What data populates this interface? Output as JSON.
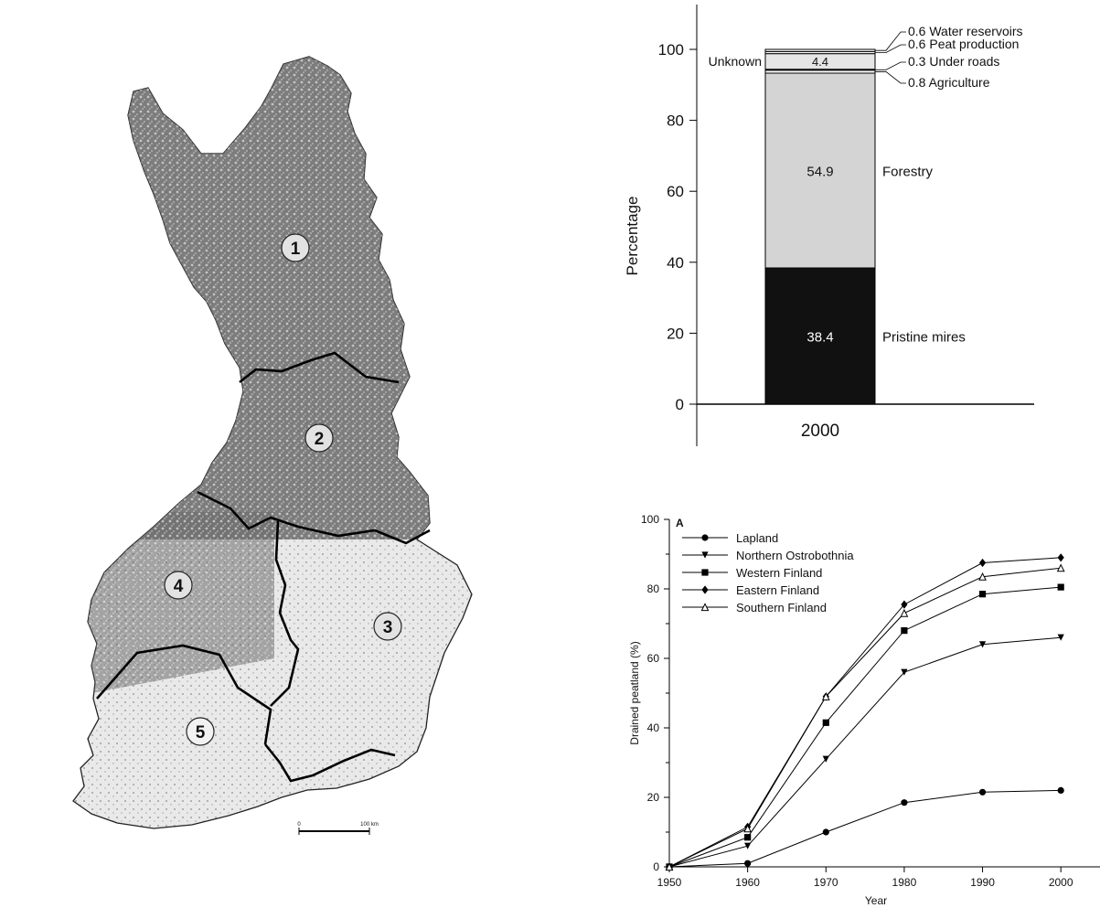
{
  "map": {
    "regions": [
      {
        "number": "1",
        "name": "Lapland"
      },
      {
        "number": "2",
        "name": "Northern Ostrobothnia"
      },
      {
        "number": "3",
        "name": "Eastern Finland"
      },
      {
        "number": "4",
        "name": "Western Finland"
      },
      {
        "number": "5",
        "name": "Southern Finland"
      }
    ],
    "scale_start": "0",
    "scale_end": "100 km",
    "colors": {
      "land": "#e8e8e8",
      "peat": "#555555",
      "boundary": "#000000"
    }
  },
  "chart_data": [
    {
      "type": "bar",
      "stacked": true,
      "categories": [
        "2000"
      ],
      "ylabel": "Percentage",
      "ylim": [
        0,
        100
      ],
      "yticks": [
        0,
        20,
        40,
        60,
        80,
        100
      ],
      "segments": [
        {
          "name": "Pristine mires",
          "value": 38.4,
          "label": "38.4",
          "color": "#111111"
        },
        {
          "name": "Forestry",
          "value": 54.9,
          "label": "54.9",
          "color": "#d4d4d4"
        },
        {
          "name": "Agriculture",
          "value": 0.8,
          "label": "0.8 Agriculture",
          "color": "#ffffff"
        },
        {
          "name": "Under roads",
          "value": 0.3,
          "label": "0.3 Under roads",
          "color": "#ffffff"
        },
        {
          "name": "Unknown",
          "value": 4.4,
          "label": "4.4",
          "color": "#e6e6e6"
        },
        {
          "name": "Peat production",
          "value": 0.6,
          "label": "0.6 Peat production",
          "color": "#ffffff"
        },
        {
          "name": "Water reservoirs",
          "value": 0.6,
          "label": "0.6 Water reservoirs",
          "color": "#ffffff"
        }
      ]
    },
    {
      "type": "line",
      "panel_label": "A",
      "xlabel": "Year",
      "ylabel": "Drained peatland (%)",
      "x": [
        1950,
        1960,
        1970,
        1980,
        1990,
        2000
      ],
      "xlim": [
        1950,
        2005
      ],
      "ylim": [
        0,
        100
      ],
      "xticks": [
        1950,
        1960,
        1970,
        1980,
        1990,
        2000
      ],
      "yticks": [
        0,
        20,
        40,
        60,
        80,
        100
      ],
      "legend_position": "top-left",
      "series": [
        {
          "name": "Lapland",
          "marker": "circle",
          "values": [
            0,
            1,
            10,
            18.5,
            21.5,
            22
          ]
        },
        {
          "name": "Northern Ostrobothnia",
          "marker": "triangle-down",
          "values": [
            0,
            6,
            31,
            56,
            64,
            66
          ]
        },
        {
          "name": "Western Finland",
          "marker": "square",
          "values": [
            0,
            8.5,
            41.5,
            68,
            78.5,
            80.5
          ]
        },
        {
          "name": "Eastern Finland",
          "marker": "diamond",
          "values": [
            0,
            11.5,
            49,
            75.5,
            87.5,
            89
          ]
        },
        {
          "name": "Southern Finland",
          "marker": "triangle-up-open",
          "values": [
            0,
            11,
            49,
            73,
            83.5,
            86
          ]
        }
      ]
    }
  ]
}
